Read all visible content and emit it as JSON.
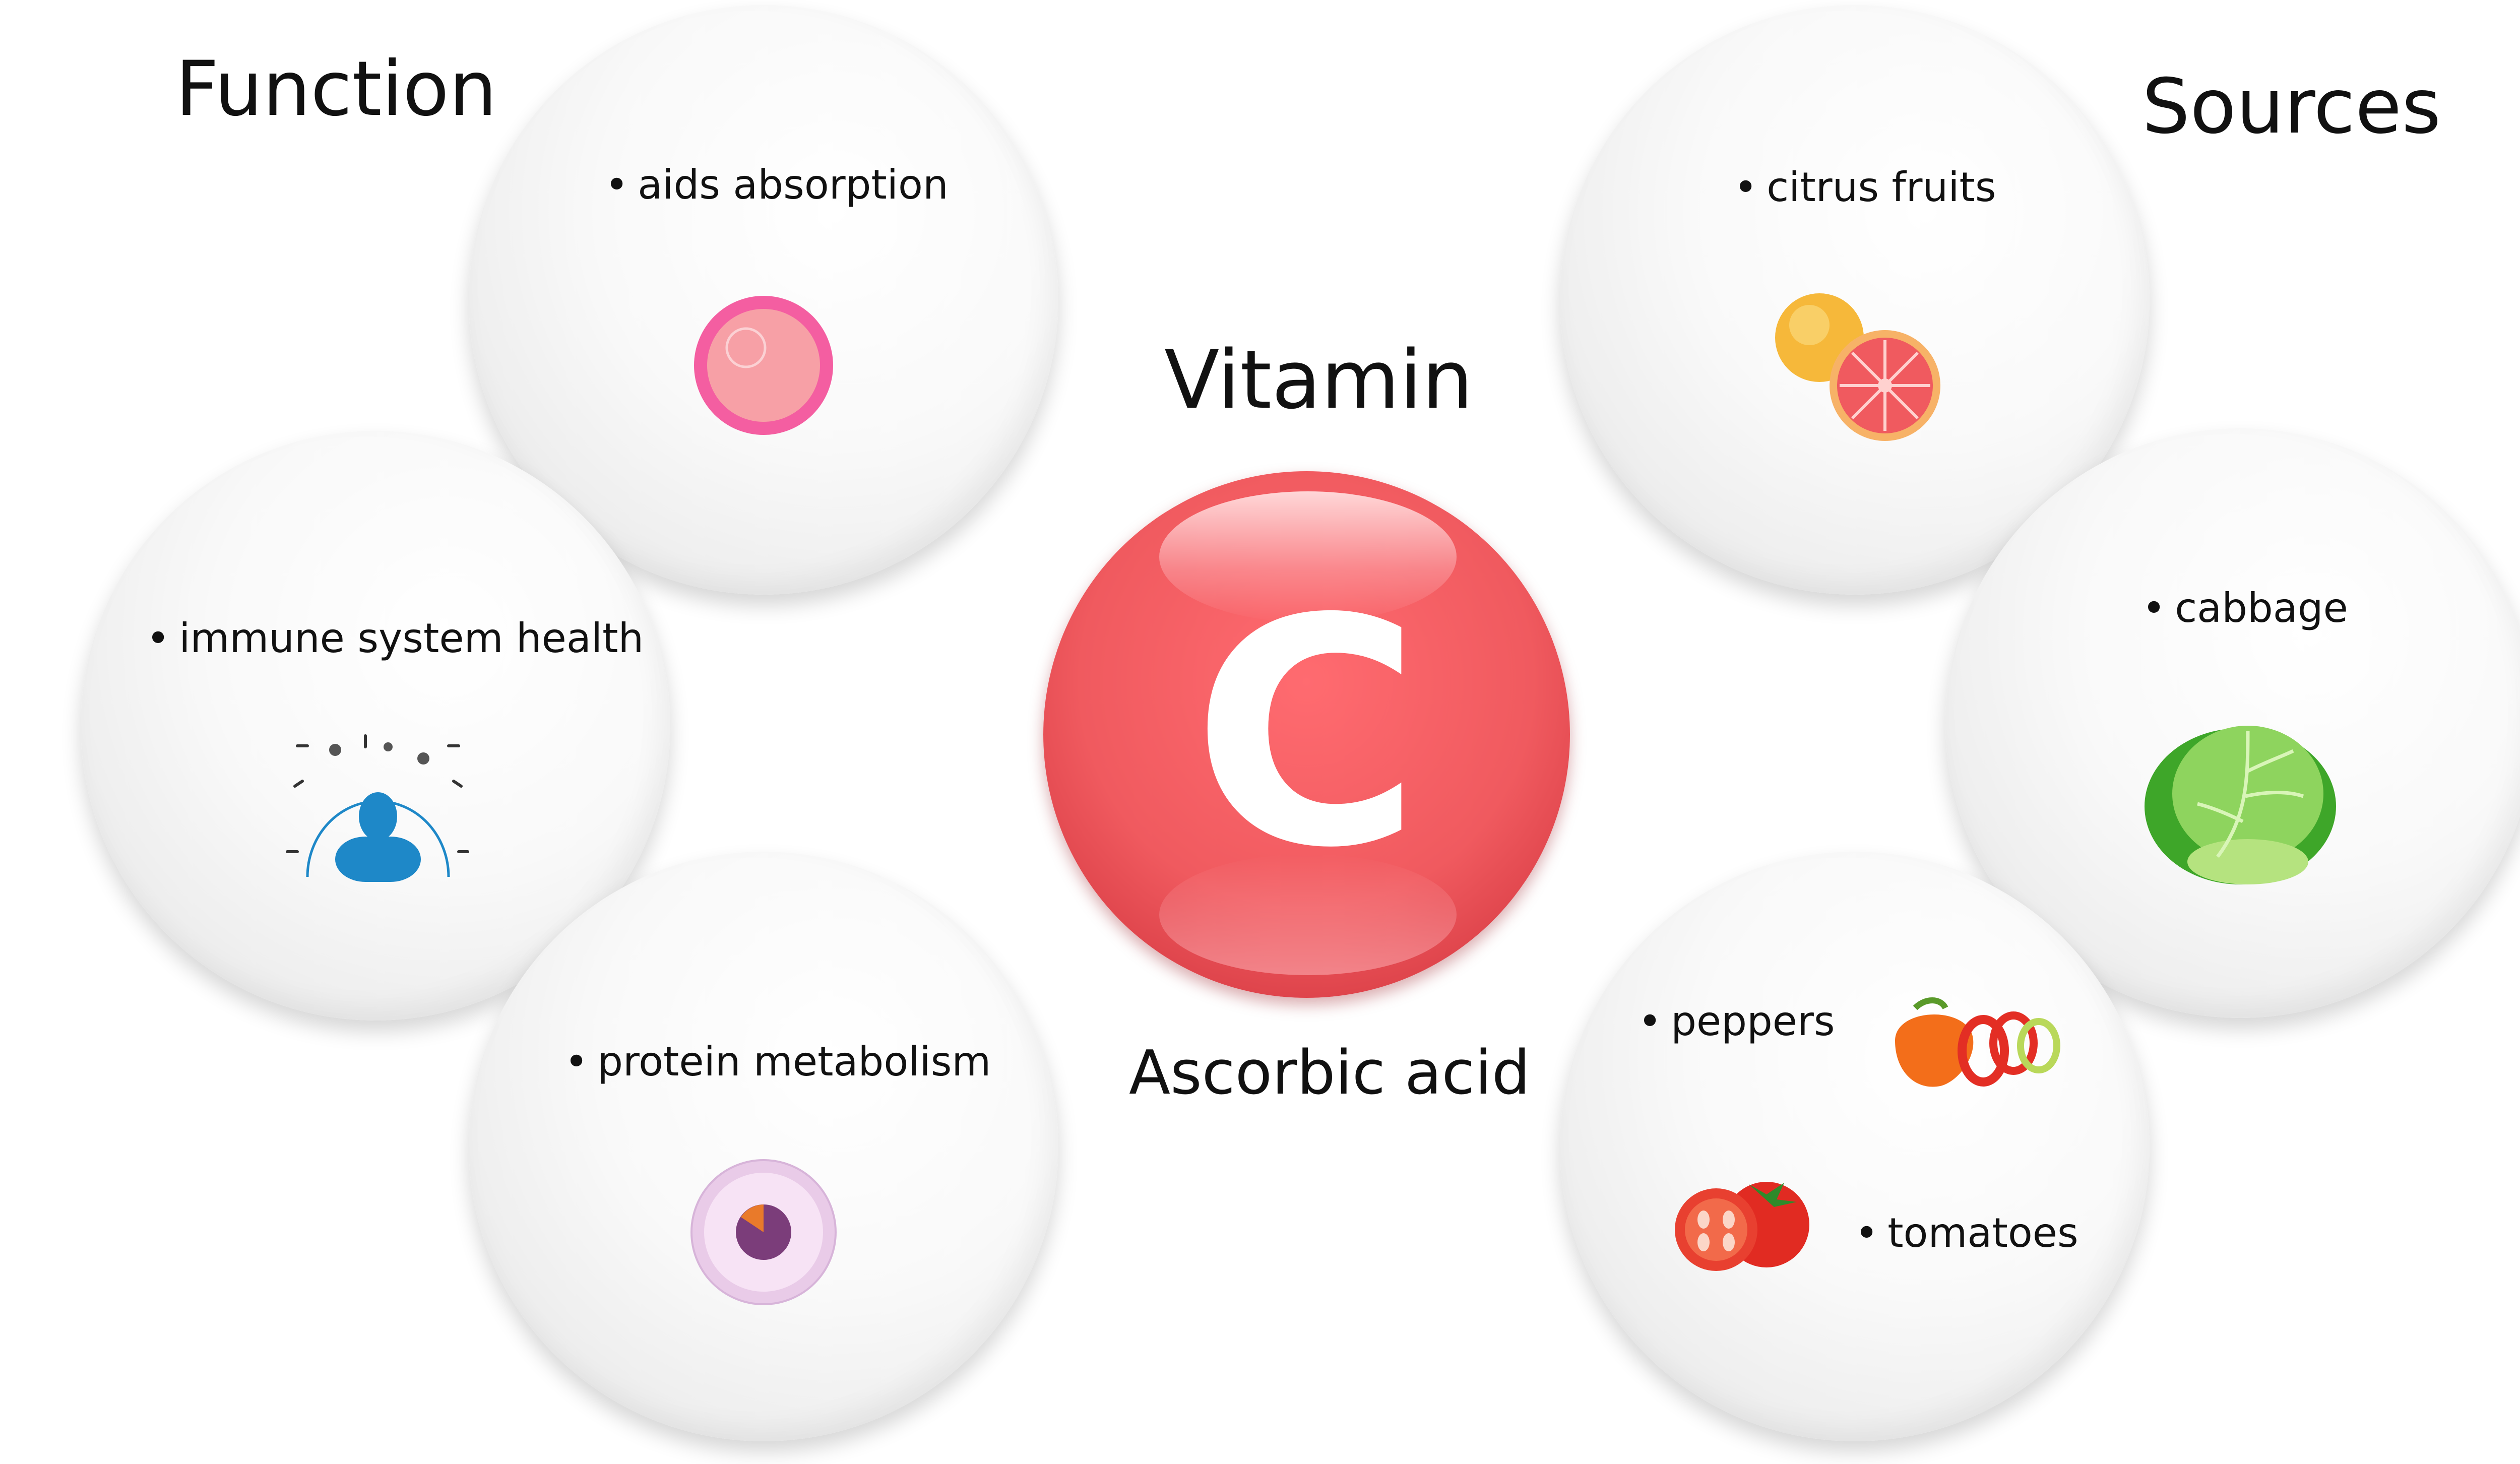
{
  "headings": {
    "function": "Function",
    "sources": "Sources"
  },
  "center": {
    "title": "Vitamin",
    "letter": "C",
    "subtitle": "Ascorbic acid"
  },
  "functions": [
    {
      "label": "aids absorption",
      "icon": "cell-icon"
    },
    {
      "label": "immune system health",
      "icon": "immune-person-icon"
    },
    {
      "label": "protein metabolism",
      "icon": "cell-nucleus-icon"
    }
  ],
  "sources": [
    {
      "label": "citrus fruits",
      "icon": "citrus-icon"
    },
    {
      "label": "cabbage",
      "icon": "cabbage-icon"
    },
    {
      "label": "peppers",
      "icon": "pepper-icon"
    },
    {
      "label": "tomatoes",
      "icon": "tomato-icon"
    }
  ],
  "bullet": "•",
  "colors": {
    "vitamin_red": "#f05a5f",
    "immune_blue": "#1e88c8",
    "cabbage_green": "#5cc23c"
  }
}
